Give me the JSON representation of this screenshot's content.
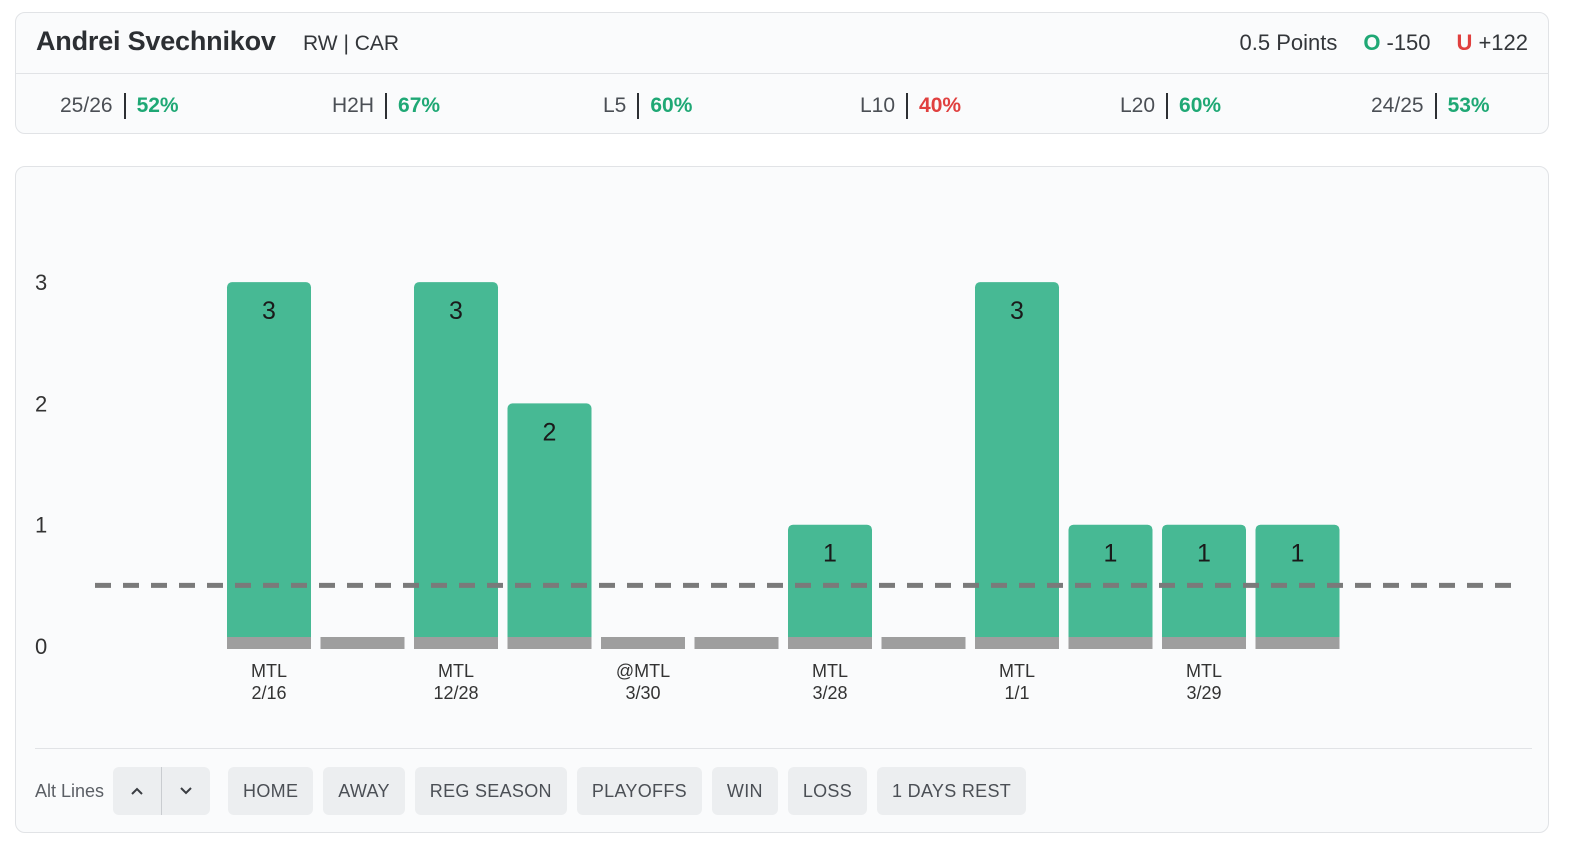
{
  "player": {
    "name": "Andrei Svechnikov",
    "meta": "RW | CAR"
  },
  "line": {
    "points": "0.5 Points",
    "over_letter": "O",
    "over_odds": "-150",
    "under_letter": "U",
    "under_odds": "+122"
  },
  "stats": [
    {
      "label": "25/26",
      "value": "52%",
      "color": "#1fa875"
    },
    {
      "label": "H2H",
      "value": "67%",
      "color": "#1fa875"
    },
    {
      "label": "L5",
      "value": "60%",
      "color": "#1fa875"
    },
    {
      "label": "L10",
      "value": "40%",
      "color": "#e0403f"
    },
    {
      "label": "L20",
      "value": "60%",
      "color": "#1fa875"
    },
    {
      "label": "24/25",
      "value": "53%",
      "color": "#1fa875"
    }
  ],
  "chart_data": {
    "type": "bar",
    "ylim": [
      0,
      3
    ],
    "yticks": [
      0,
      1,
      2,
      3
    ],
    "line_value": 0.5,
    "values": [
      3,
      0,
      3,
      2,
      0,
      0,
      1,
      0,
      3,
      1,
      1,
      1
    ],
    "labels": [
      [
        "MTL",
        "2/16"
      ],
      null,
      [
        "MTL",
        "12/28"
      ],
      null,
      [
        "@MTL",
        "3/30"
      ],
      null,
      [
        "MTL",
        "3/28"
      ],
      null,
      [
        "MTL",
        "1/1"
      ],
      null,
      [
        "MTL",
        "3/29"
      ],
      null
    ],
    "bar_color": "#47b994",
    "base_color": "#9e9e9e",
    "line_color": "#7a7a7a"
  },
  "controls": {
    "alt_lines_label": "Alt Lines",
    "filters": [
      "HOME",
      "AWAY",
      "REG SEASON",
      "PLAYOFFS",
      "WIN",
      "LOSS",
      "1 DAYS REST"
    ]
  }
}
